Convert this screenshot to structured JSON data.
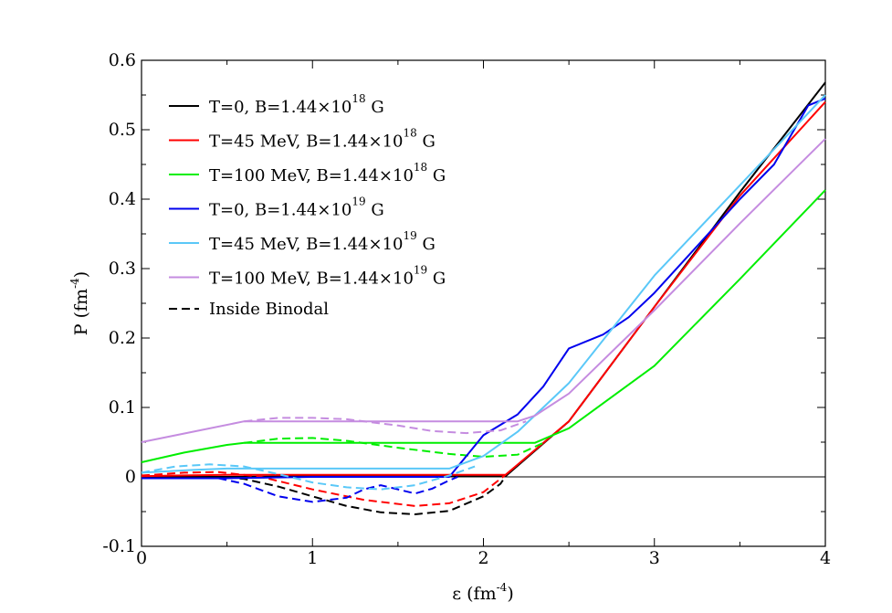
{
  "chart_data": {
    "type": "line",
    "title": "",
    "xlabel": {
      "main": "ε (fm",
      "sup": "-4",
      "close": ")"
    },
    "ylabel": {
      "main": "P (fm",
      "sup": "-4",
      "close": ")"
    },
    "xlim": [
      0,
      4
    ],
    "ylim": [
      -0.1,
      0.6
    ],
    "xticks": [
      {
        "value": 0,
        "label": "0"
      },
      {
        "value": 1,
        "label": "1"
      },
      {
        "value": 2,
        "label": "2"
      },
      {
        "value": 3,
        "label": "3"
      },
      {
        "value": 4,
        "label": "4"
      }
    ],
    "yticks": [
      {
        "value": -0.1,
        "label": "-0.1"
      },
      {
        "value": 0,
        "label": "0"
      },
      {
        "value": 0.1,
        "label": "0.1"
      },
      {
        "value": 0.2,
        "label": "0.2"
      },
      {
        "value": 0.3,
        "label": "0.3"
      },
      {
        "value": 0.4,
        "label": "0.4"
      },
      {
        "value": 0.5,
        "label": "0.5"
      },
      {
        "value": 0.6,
        "label": "0.6"
      }
    ],
    "zero_line": true,
    "legend_position": "top-left",
    "series": [
      {
        "name": "T=0, B=1.44×10^18 G",
        "legend": {
          "pre": "T=0, B=1.44×10",
          "sup": "18",
          "post": " G"
        },
        "color": "#000000",
        "x": [
          0,
          0.5,
          1.0,
          1.5,
          2.0,
          2.1,
          2.13,
          2.5,
          3.0,
          3.5,
          4.0
        ],
        "y": [
          0,
          0,
          0.001,
          0.001,
          0.001,
          0.001,
          0.001,
          0.08,
          0.245,
          0.41,
          0.568
        ],
        "dashed": {
          "x": [
            0.5,
            0.6,
            0.8,
            1.0,
            1.2,
            1.4,
            1.6,
            1.8,
            2.0,
            2.1,
            2.13
          ],
          "y": [
            0,
            -0.003,
            -0.014,
            -0.028,
            -0.042,
            -0.051,
            -0.054,
            -0.049,
            -0.028,
            -0.01,
            0.001
          ]
        }
      },
      {
        "name": "T=45 MeV, B=1.44×10^18 G",
        "legend": {
          "pre": "T=45 MeV, B=1.44×10",
          "sup": "18",
          "post": " G"
        },
        "color": "#ff0000",
        "x": [
          0,
          0.2,
          0.5,
          1.0,
          1.5,
          2.0,
          2.13,
          2.5,
          3.0,
          3.5,
          4.0
        ],
        "y": [
          0.001,
          0.002,
          0.003,
          0.003,
          0.003,
          0.003,
          0.003,
          0.08,
          0.245,
          0.405,
          0.54
        ],
        "dashed": {
          "x": [
            0,
            0.25,
            0.45,
            0.7,
            1.0,
            1.3,
            1.6,
            1.8,
            2.0,
            2.13
          ],
          "y": [
            0.002,
            0.006,
            0.007,
            0.0,
            -0.018,
            -0.033,
            -0.042,
            -0.038,
            -0.022,
            0.003
          ]
        }
      },
      {
        "name": "T=100 MeV, B=1.44×10^18 G",
        "legend": {
          "pre": "T=100 MeV, B=1.44×10",
          "sup": "18",
          "post": " G"
        },
        "color": "#00ee00",
        "x": [
          0,
          0.25,
          0.5,
          0.6,
          1.0,
          1.5,
          2.0,
          2.3,
          2.5,
          3.0,
          3.5,
          4.0
        ],
        "y": [
          0.021,
          0.035,
          0.046,
          0.049,
          0.049,
          0.049,
          0.049,
          0.049,
          0.07,
          0.16,
          0.285,
          0.413
        ],
        "dashed": {
          "x": [
            0.6,
            0.8,
            1.0,
            1.2,
            1.5,
            1.8,
            2.0,
            2.2,
            2.35
          ],
          "y": [
            0.049,
            0.055,
            0.056,
            0.052,
            0.042,
            0.033,
            0.029,
            0.032,
            0.049
          ]
        }
      },
      {
        "name": "T=0, B=1.44×10^19 G",
        "legend": {
          "pre": "T=0, B=1.44×10",
          "sup": "19",
          "post": " G"
        },
        "color": "#0000ee",
        "x": [
          0,
          0.5,
          1.0,
          1.5,
          1.8,
          1.9,
          2.0,
          2.2,
          2.35,
          2.5,
          2.7,
          2.85,
          3.0,
          3.5,
          3.7,
          3.9,
          4.0
        ],
        "y": [
          -0.002,
          -0.002,
          0.0,
          0.0,
          0.0,
          0.03,
          0.06,
          0.09,
          0.13,
          0.185,
          0.205,
          0.23,
          0.265,
          0.4,
          0.45,
          0.535,
          0.545
        ],
        "dashed": {
          "x": [
            0.45,
            0.6,
            0.8,
            1.0,
            1.2,
            1.3,
            1.4,
            1.5,
            1.6,
            1.7,
            1.8,
            1.85
          ],
          "y": [
            -0.002,
            -0.01,
            -0.028,
            -0.036,
            -0.03,
            -0.018,
            -0.012,
            -0.018,
            -0.024,
            -0.017,
            -0.005,
            0.0
          ]
        }
      },
      {
        "name": "T=45 MeV, B=1.44×10^19 G",
        "legend": {
          "pre": "T=45 MeV, B=1.44×10",
          "sup": "19",
          "post": " G"
        },
        "color": "#5ac8f8",
        "x": [
          0,
          0.3,
          0.5,
          1.0,
          1.5,
          1.8,
          2.0,
          2.2,
          2.5,
          3.0,
          3.5,
          4.0
        ],
        "y": [
          0.006,
          0.01,
          0.012,
          0.012,
          0.012,
          0.012,
          0.03,
          0.065,
          0.135,
          0.29,
          0.42,
          0.55
        ],
        "dashed": {
          "x": [
            0,
            0.2,
            0.4,
            0.6,
            0.8,
            1.0,
            1.2,
            1.4,
            1.6,
            1.8,
            1.95
          ],
          "y": [
            0.006,
            0.015,
            0.018,
            0.015,
            0.004,
            -0.008,
            -0.015,
            -0.018,
            -0.012,
            0.002,
            0.015
          ]
        }
      },
      {
        "name": "T=100 MeV, B=1.44×10^19 G",
        "legend": {
          "pre": "T=100 MeV, B=1.44×10",
          "sup": "19",
          "post": " G"
        },
        "color": "#c58ce0",
        "x": [
          0,
          0.3,
          0.6,
          1.0,
          1.5,
          2.0,
          2.2,
          2.3,
          2.5,
          3.0,
          3.5,
          4.0
        ],
        "y": [
          0.05,
          0.065,
          0.08,
          0.08,
          0.08,
          0.08,
          0.08,
          0.088,
          0.12,
          0.24,
          0.365,
          0.487
        ],
        "dashed": {
          "x": [
            0.6,
            0.8,
            1.0,
            1.2,
            1.5,
            1.7,
            1.9,
            2.1,
            2.25
          ],
          "y": [
            0.08,
            0.085,
            0.085,
            0.083,
            0.074,
            0.066,
            0.063,
            0.067,
            0.08
          ]
        }
      }
    ],
    "dashed_legend": {
      "label": "Inside Binodal",
      "color": "#000000"
    }
  }
}
